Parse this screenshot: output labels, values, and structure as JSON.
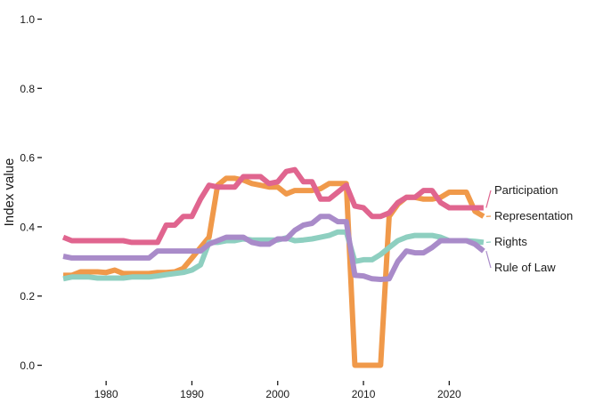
{
  "chart_data": {
    "type": "line",
    "title": "",
    "xlabel": "",
    "ylabel": "Index value",
    "xlim": [
      1974.5,
      2031.5
    ],
    "ylim": [
      -0.05,
      1.05
    ],
    "x_ticks": [
      1980,
      1990,
      2000,
      2010,
      2020
    ],
    "y_ticks": [
      0.0,
      0.2,
      0.4,
      0.6,
      0.8,
      1.0
    ],
    "y_tick_labels": [
      "0.0",
      "0.2",
      "0.4",
      "0.6",
      "0.8",
      "1.0"
    ],
    "grid": false,
    "legend": "direct labels at line ends (right)",
    "series": [
      {
        "name": "Participation",
        "color": "#E0658F",
        "x": [
          1975,
          1976,
          1977,
          1978,
          1979,
          1980,
          1981,
          1982,
          1983,
          1984,
          1985,
          1986,
          1987,
          1988,
          1989,
          1990,
          1991,
          1992,
          1993,
          1994,
          1995,
          1996,
          1997,
          1998,
          1999,
          2000,
          2001,
          2002,
          2003,
          2004,
          2005,
          2006,
          2007,
          2008,
          2009,
          2010,
          2011,
          2012,
          2013,
          2014,
          2015,
          2016,
          2017,
          2018,
          2019,
          2020,
          2021,
          2022,
          2023,
          2024
        ],
        "values": [
          0.37,
          0.36,
          0.36,
          0.36,
          0.36,
          0.36,
          0.36,
          0.36,
          0.355,
          0.355,
          0.355,
          0.355,
          0.405,
          0.405,
          0.43,
          0.43,
          0.48,
          0.52,
          0.515,
          0.515,
          0.515,
          0.545,
          0.545,
          0.545,
          0.525,
          0.53,
          0.56,
          0.565,
          0.53,
          0.53,
          0.48,
          0.48,
          0.5,
          0.52,
          0.46,
          0.455,
          0.43,
          0.43,
          0.44,
          0.47,
          0.485,
          0.485,
          0.505,
          0.505,
          0.47,
          0.455,
          0.455,
          0.455,
          0.455,
          0.455
        ]
      },
      {
        "name": "Representation",
        "color": "#F0994A",
        "x": [
          1975,
          1976,
          1977,
          1978,
          1979,
          1980,
          1981,
          1982,
          1983,
          1984,
          1985,
          1986,
          1987,
          1988,
          1989,
          1990,
          1991,
          1992,
          1993,
          1994,
          1995,
          1996,
          1997,
          1998,
          1999,
          2000,
          2001,
          2002,
          2003,
          2004,
          2005,
          2006,
          2007,
          2008,
          2009,
          2010,
          2011,
          2012,
          2013,
          2014,
          2015,
          2016,
          2017,
          2018,
          2019,
          2020,
          2021,
          2022,
          2023,
          2024
        ],
        "values": [
          0.26,
          0.26,
          0.27,
          0.27,
          0.27,
          0.268,
          0.275,
          0.265,
          0.265,
          0.265,
          0.265,
          0.268,
          0.268,
          0.27,
          0.28,
          0.31,
          0.34,
          0.37,
          0.52,
          0.54,
          0.54,
          0.535,
          0.525,
          0.52,
          0.515,
          0.515,
          0.495,
          0.505,
          0.505,
          0.505,
          0.51,
          0.525,
          0.525,
          0.525,
          0.0,
          0.0,
          0.0,
          0.0,
          0.43,
          0.465,
          0.485,
          0.485,
          0.48,
          0.48,
          0.485,
          0.5,
          0.5,
          0.5,
          0.445,
          0.43
        ]
      },
      {
        "name": "Rights",
        "color": "#8ECFC0",
        "x": [
          1975,
          1976,
          1977,
          1978,
          1979,
          1980,
          1981,
          1982,
          1983,
          1984,
          1985,
          1986,
          1987,
          1988,
          1989,
          1990,
          1991,
          1992,
          1993,
          1994,
          1995,
          1996,
          1997,
          1998,
          1999,
          2000,
          2001,
          2002,
          2003,
          2004,
          2005,
          2006,
          2007,
          2008,
          2009,
          2010,
          2011,
          2012,
          2013,
          2014,
          2015,
          2016,
          2017,
          2018,
          2019,
          2020,
          2021,
          2022,
          2023,
          2024
        ],
        "values": [
          0.25,
          0.255,
          0.255,
          0.255,
          0.252,
          0.252,
          0.252,
          0.252,
          0.255,
          0.255,
          0.255,
          0.258,
          0.262,
          0.265,
          0.268,
          0.275,
          0.29,
          0.355,
          0.355,
          0.36,
          0.36,
          0.365,
          0.362,
          0.362,
          0.362,
          0.362,
          0.368,
          0.36,
          0.362,
          0.365,
          0.37,
          0.375,
          0.385,
          0.385,
          0.3,
          0.305,
          0.305,
          0.32,
          0.34,
          0.36,
          0.37,
          0.375,
          0.375,
          0.375,
          0.37,
          0.36,
          0.36,
          0.36,
          0.358,
          0.355
        ]
      },
      {
        "name": "Rule of Law",
        "color": "#A98BC9",
        "x": [
          1975,
          1976,
          1977,
          1978,
          1979,
          1980,
          1981,
          1982,
          1983,
          1984,
          1985,
          1986,
          1987,
          1988,
          1989,
          1990,
          1991,
          1992,
          1993,
          1994,
          1995,
          1996,
          1997,
          1998,
          1999,
          2000,
          2001,
          2002,
          2003,
          2004,
          2005,
          2006,
          2007,
          2008,
          2009,
          2010,
          2011,
          2012,
          2013,
          2014,
          2015,
          2016,
          2017,
          2018,
          2019,
          2020,
          2021,
          2022,
          2023,
          2024
        ],
        "values": [
          0.315,
          0.31,
          0.31,
          0.31,
          0.31,
          0.31,
          0.31,
          0.31,
          0.31,
          0.31,
          0.31,
          0.33,
          0.33,
          0.33,
          0.33,
          0.33,
          0.33,
          0.35,
          0.36,
          0.37,
          0.37,
          0.37,
          0.355,
          0.35,
          0.35,
          0.365,
          0.365,
          0.39,
          0.405,
          0.41,
          0.43,
          0.43,
          0.415,
          0.415,
          0.26,
          0.258,
          0.25,
          0.248,
          0.25,
          0.3,
          0.33,
          0.325,
          0.325,
          0.34,
          0.36,
          0.36,
          0.36,
          0.36,
          0.35,
          0.33
        ]
      }
    ]
  }
}
